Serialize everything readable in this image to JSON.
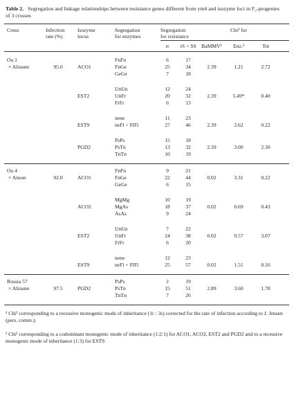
{
  "title": {
    "label": "Table 2.",
    "text": "Segregation and linkage relationships between resistance genes different from ym4 and isozyme loci in F₂-progenies of 3 crosses"
  },
  "header": {
    "cross": "Cross",
    "infection": [
      "Infection",
      "rate (%)"
    ],
    "locus": [
      "Isozyme",
      "locus"
    ],
    "seg_enz": [
      "Segregation",
      "for enzymes"
    ],
    "seg_res": [
      "Segregation",
      "for resistance"
    ],
    "chi": "Chi² for",
    "rr": "rr",
    "rs": "rS + SS",
    "bammv": "BaMMV¹",
    "enz": "Enz.²",
    "tot": "Tot"
  },
  "crosses": [
    {
      "name": [
        "Ou 1",
        "× Alraune"
      ],
      "infection": "95.0",
      "loci": [
        {
          "locus": "ACO1",
          "rows": [
            {
              "seg": "FnFn",
              "rr": 6,
              "rs": 17
            },
            {
              "seg": "FnGe",
              "rr": 25,
              "rs": 34
            },
            {
              "seg": "GeGe",
              "rr": 7,
              "rs": 18
            }
          ],
          "bammv": "2.39",
          "enz": "1.21",
          "tot": "2.72"
        },
        {
          "locus": "EST2",
          "rows": [
            {
              "seg": "UnUn",
              "rr": 12,
              "rs": 24
            },
            {
              "seg": "UnFr",
              "rr": 20,
              "rs": 32
            },
            {
              "seg": "FrFr",
              "rr": 6,
              "rs": 13
            }
          ],
          "bammv": "2.39",
          "enz": "5.49*",
          "tot": "0.40"
        },
        {
          "locus": "EST9",
          "rows": [
            {
              "seg": "nene",
              "rr": 11,
              "rs": 23
            },
            {
              "seg": "neFl + FlFl",
              "rr": 27,
              "rs": 46
            }
          ],
          "bammv": "2.39",
          "enz": "2.62",
          "tot": "0.22"
        },
        {
          "locus": "PGD2",
          "rows": [
            {
              "seg": "PsPs",
              "rr": 15,
              "rs": 18
            },
            {
              "seg": "PsTn",
              "rr": 13,
              "rs": 32
            },
            {
              "seg": "TnTn",
              "rr": 10,
              "rs": 19
            }
          ],
          "bammv": "2.39",
          "enz": "3.00",
          "tot": "2.30"
        }
      ]
    },
    {
      "name": [
        "Ou 4",
        "× Anson"
      ],
      "infection": "92.0",
      "loci": [
        {
          "locus": "ACO1",
          "rows": [
            {
              "seg": "FnFn",
              "rr": 9,
              "rs": 21
            },
            {
              "seg": "FnGe",
              "rr": 22,
              "rs": 44
            },
            {
              "seg": "GeGe",
              "rr": 6,
              "rs": 15
            }
          ],
          "bammv": "0.02",
          "enz": "3.31",
          "tot": "0.22"
        },
        {
          "locus": "ACO2",
          "rows": [
            {
              "seg": "MgMg",
              "rr": 10,
              "rs": 19
            },
            {
              "seg": "MgAs",
              "rr": 18,
              "rs": 37
            },
            {
              "seg": "AsAs",
              "rr": 9,
              "rs": 24
            }
          ],
          "bammv": "0.02",
          "enz": "0.69",
          "tot": "0.43"
        },
        {
          "locus": "EST2",
          "rows": [
            {
              "seg": "UnUn",
              "rr": 7,
              "rs": 22
            },
            {
              "seg": "UnFr",
              "rr": 24,
              "rs": 38
            },
            {
              "seg": "FrFr",
              "rr": 6,
              "rs": 20
            }
          ],
          "bammv": "0.02",
          "enz": "0.57",
          "tot": "3.07"
        },
        {
          "locus": "EST9",
          "rows": [
            {
              "seg": "nene",
              "rr": 12,
              "rs": 23
            },
            {
              "seg": "neFl + FlFl",
              "rr": 25,
              "rs": 57
            }
          ],
          "bammv": "0.02",
          "enz": "1.51",
          "tot": "0.16"
        }
      ]
    },
    {
      "name": [
        "Russia 57",
        "× Alraune"
      ],
      "infection": "97.5",
      "loci": [
        {
          "locus": "PGD2",
          "rows": [
            {
              "seg": "PsPs",
              "rr": 2,
              "rs": 19
            },
            {
              "seg": "PsTn",
              "rr": 15,
              "rs": 51
            },
            {
              "seg": "TnTn",
              "rr": 7,
              "rs": 26
            }
          ],
          "bammv": "2.89",
          "enz": "3.60",
          "tot": "1.78"
        }
      ]
    }
  ],
  "footnotes": [
    "¹ Chi² corresponding to a recessive monogenic mode of inheritance (1r : 3s) corrected for the rate of infection according to J. Jensen (pers. comm.).",
    "² Chi² corresponding to a codominant monogenic mode of inheritance (1:2:1) for ACO1, ACO2, EST2 and PGD2 and to a recessive monogenic mode of inheritance (1:3) for EST9."
  ]
}
